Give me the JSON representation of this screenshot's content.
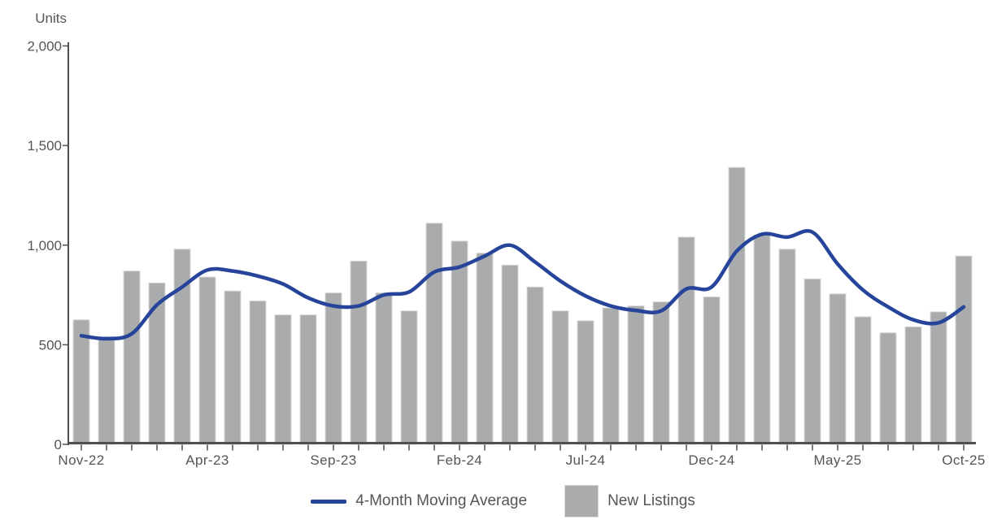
{
  "legend": {
    "line_label": "4-Month Moving Average",
    "bar_label": "New Listings"
  },
  "colors": {
    "bar": "#a9abad",
    "bar_edge": "#d8d9da",
    "line": "#27449b",
    "axis": "#4f4f4f",
    "text": "#54555a"
  },
  "chart_data": {
    "type": "bar",
    "title": "",
    "ylabel": "Units",
    "xlabel": "",
    "ylim": [
      0,
      2000
    ],
    "ytick_interval": 500,
    "ytick_labels": [
      "0",
      "500",
      "1,000",
      "1,500",
      "2,000"
    ],
    "grid": false,
    "legend_position": "bottom",
    "categories": [
      "Nov-22",
      "Dec-22",
      "Jan-23",
      "Feb-23",
      "Mar-23",
      "Apr-23",
      "May-23",
      "Jun-23",
      "Jul-23",
      "Aug-23",
      "Sep-23",
      "Oct-23",
      "Nov-23",
      "Dec-23",
      "Jan-24",
      "Feb-24",
      "Mar-24",
      "Apr-24",
      "May-24",
      "Jun-24",
      "Jul-24",
      "Aug-24",
      "Sep-24",
      "Oct-24",
      "Nov-24",
      "Dec-24",
      "Jan-25",
      "Feb-25",
      "Mar-25",
      "Apr-25",
      "May-25",
      "Jun-25",
      "Jul-25",
      "Aug-25",
      "Sep-25",
      "Oct-25"
    ],
    "xtick_shown": [
      "Nov-22",
      "Apr-23",
      "Sep-23",
      "Feb-24",
      "Jul-24",
      "Dec-24",
      "May-25",
      "Oct-25"
    ],
    "series": [
      {
        "name": "New Listings",
        "type": "bar",
        "values": [
          625,
          540,
          870,
          810,
          980,
          840,
          770,
          720,
          650,
          650,
          760,
          920,
          760,
          670,
          1110,
          1020,
          960,
          900,
          790,
          670,
          620,
          685,
          695,
          715,
          1040,
          740,
          1390,
          1050,
          980,
          830,
          755,
          640,
          560,
          590,
          665,
          945
        ]
      },
      {
        "name": "4-Month Moving Average",
        "type": "line",
        "values": [
          545,
          530,
          555,
          700,
          790,
          875,
          870,
          845,
          805,
          735,
          695,
          695,
          750,
          765,
          865,
          890,
          945,
          1000,
          915,
          820,
          745,
          695,
          672,
          670,
          780,
          790,
          970,
          1055,
          1040,
          1065,
          905,
          775,
          690,
          625,
          610,
          690
        ]
      }
    ]
  }
}
